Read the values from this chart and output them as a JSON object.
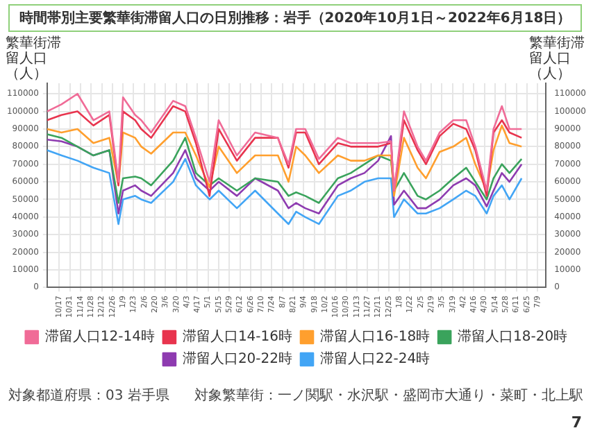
{
  "chart_data": {
    "type": "line",
    "title": "時間帯別主要繁華街滞留人口の日別推移：岩手（2020年10月1日～2022年6月18日）",
    "ylabel": "繁華街滞留人口（人）",
    "y2label": "繁華街滞留人口（人）",
    "x": [
      "2020-10-01",
      "2020-10-20",
      "2020-11-10",
      "2020-12-01",
      "2020-12-22",
      "2021-01-03",
      "2021-01-09",
      "2021-01-25",
      "2021-02-02",
      "2021-02-15",
      "2021-03-16",
      "2021-04-01",
      "2021-04-15",
      "2021-05-03",
      "2021-05-15",
      "2021-06-08",
      "2021-07-02",
      "2021-08-01",
      "2021-08-15",
      "2021-08-25",
      "2021-09-06",
      "2021-09-24",
      "2021-10-19",
      "2021-11-05",
      "2021-11-23",
      "2021-12-11",
      "2021-12-28",
      "2022-01-01",
      "2022-01-14",
      "2022-02-01",
      "2022-02-12",
      "2022-03-02",
      "2022-03-20",
      "2022-04-06",
      "2022-04-18",
      "2022-05-03",
      "2022-05-12",
      "2022-05-23",
      "2022-06-02",
      "2022-06-18"
    ],
    "series": [
      {
        "name": "滞留人口12-14時",
        "color": "#f06b97",
        "values": [
          100000,
          104000,
          110000,
          95000,
          100000,
          60000,
          108000,
          98000,
          95000,
          88000,
          106000,
          103000,
          85000,
          60000,
          95000,
          75000,
          88000,
          85000,
          70000,
          90000,
          90000,
          73000,
          85000,
          82000,
          82000,
          82000,
          83000,
          55000,
          100000,
          80000,
          72000,
          88000,
          95000,
          95000,
          80000,
          55000,
          90000,
          103000,
          90000,
          90000
        ]
      },
      {
        "name": "滞留人口14-16時",
        "color": "#e8344e",
        "values": [
          95000,
          98000,
          100000,
          92000,
          98000,
          58000,
          100000,
          95000,
          90000,
          85000,
          103000,
          100000,
          82000,
          52000,
          90000,
          72000,
          85000,
          85000,
          68000,
          88000,
          88000,
          70000,
          82000,
          80000,
          80000,
          80000,
          82000,
          55000,
          95000,
          78000,
          70000,
          86000,
          93000,
          90000,
          78000,
          52000,
          88000,
          95000,
          88000,
          85000
        ]
      },
      {
        "name": "滞留人口16-18時",
        "color": "#ff9f2e",
        "values": [
          90000,
          88000,
          90000,
          82000,
          85000,
          58000,
          88000,
          85000,
          80000,
          76000,
          88000,
          88000,
          75000,
          57000,
          80000,
          65000,
          75000,
          75000,
          60000,
          80000,
          75000,
          65000,
          75000,
          72000,
          72000,
          75000,
          75000,
          52000,
          85000,
          68000,
          62000,
          77000,
          80000,
          85000,
          70000,
          55000,
          78000,
          92000,
          82000,
          80000
        ]
      },
      {
        "name": "滞留人口18-20時",
        "color": "#3aa35c",
        "values": [
          87000,
          85000,
          80000,
          75000,
          78000,
          48000,
          62000,
          63000,
          62000,
          58000,
          72000,
          85000,
          65000,
          58000,
          62000,
          55000,
          62000,
          60000,
          52000,
          54000,
          52000,
          48000,
          62000,
          65000,
          70000,
          75000,
          72000,
          55000,
          65000,
          52000,
          50000,
          55000,
          62000,
          68000,
          60000,
          50000,
          62000,
          70000,
          65000,
          73000
        ]
      },
      {
        "name": "滞留人口20-22時",
        "color": "#8e3bb0",
        "values": [
          84000,
          83000,
          80000,
          75000,
          78000,
          42000,
          55000,
          58000,
          55000,
          52000,
          65000,
          78000,
          62000,
          55000,
          60000,
          52000,
          62000,
          55000,
          45000,
          48000,
          45000,
          42000,
          58000,
          62000,
          65000,
          72000,
          86000,
          47000,
          55000,
          45000,
          45000,
          50000,
          58000,
          62000,
          58000,
          46000,
          55000,
          65000,
          60000,
          70000
        ]
      },
      {
        "name": "滞留人口22-24時",
        "color": "#42a5f5",
        "values": [
          78000,
          75000,
          72000,
          68000,
          65000,
          36000,
          50000,
          52000,
          50000,
          48000,
          60000,
          73000,
          58000,
          50000,
          55000,
          45000,
          55000,
          42000,
          36000,
          43000,
          40000,
          36000,
          52000,
          55000,
          60000,
          62000,
          62000,
          40000,
          50000,
          42000,
          42000,
          45000,
          50000,
          55000,
          52000,
          42000,
          52000,
          58000,
          50000,
          62000
        ]
      }
    ],
    "xlim": [
      "2020-10-01",
      "2022-07-20"
    ],
    "xticks": [
      {
        "value": "2020-10-17",
        "label": "10/17"
      },
      {
        "value": "2020-10-31",
        "label": "10/31"
      },
      {
        "value": "2020-11-14",
        "label": "11/14"
      },
      {
        "value": "2020-11-28",
        "label": "11/28"
      },
      {
        "value": "2020-12-12",
        "label": "12/12"
      },
      {
        "value": "2020-12-26",
        "label": "12/26"
      },
      {
        "value": "2021-01-09",
        "label": "1/9"
      },
      {
        "value": "2021-01-23",
        "label": "1/23"
      },
      {
        "value": "2021-02-06",
        "label": "2/6"
      },
      {
        "value": "2021-02-20",
        "label": "2/20"
      },
      {
        "value": "2021-03-06",
        "label": "3/6"
      },
      {
        "value": "2021-03-20",
        "label": "3/20"
      },
      {
        "value": "2021-04-03",
        "label": "4/3"
      },
      {
        "value": "2021-04-17",
        "label": "4/17"
      },
      {
        "value": "2021-05-01",
        "label": "5/1"
      },
      {
        "value": "2021-05-15",
        "label": "5/15"
      },
      {
        "value": "2021-05-29",
        "label": "5/29"
      },
      {
        "value": "2021-06-12",
        "label": "6/12"
      },
      {
        "value": "2021-06-26",
        "label": "6/26"
      },
      {
        "value": "2021-07-10",
        "label": "7/10"
      },
      {
        "value": "2021-07-24",
        "label": "7/24"
      },
      {
        "value": "2021-08-07",
        "label": "8/7"
      },
      {
        "value": "2021-08-21",
        "label": "8/21"
      },
      {
        "value": "2021-09-04",
        "label": "9/4"
      },
      {
        "value": "2021-09-18",
        "label": "9/18"
      },
      {
        "value": "2021-10-02",
        "label": "10/2"
      },
      {
        "value": "2021-10-16",
        "label": "10/16"
      },
      {
        "value": "2021-10-30",
        "label": "10/30"
      },
      {
        "value": "2021-11-13",
        "label": "11/13"
      },
      {
        "value": "2021-11-27",
        "label": "11/27"
      },
      {
        "value": "2021-12-11",
        "label": "12/11"
      },
      {
        "value": "2021-12-25",
        "label": "12/25"
      },
      {
        "value": "2022-01-08",
        "label": "1/8"
      },
      {
        "value": "2022-01-22",
        "label": "1/22"
      },
      {
        "value": "2022-02-05",
        "label": "2/5"
      },
      {
        "value": "2022-02-19",
        "label": "2/19"
      },
      {
        "value": "2022-03-05",
        "label": "3/5"
      },
      {
        "value": "2022-03-19",
        "label": "3/19"
      },
      {
        "value": "2022-04-02",
        "label": "4/2"
      },
      {
        "value": "2022-04-16",
        "label": "4/16"
      },
      {
        "value": "2022-04-30",
        "label": "4/30"
      },
      {
        "value": "2022-05-14",
        "label": "5/14"
      },
      {
        "value": "2022-05-28",
        "label": "5/28"
      },
      {
        "value": "2022-06-11",
        "label": "6/11"
      },
      {
        "value": "2022-06-25",
        "label": "6/25"
      },
      {
        "value": "2022-07-09",
        "label": "7/9"
      }
    ],
    "ylim": [
      0,
      116000
    ],
    "yticks": [
      0,
      10000,
      20000,
      30000,
      40000,
      50000,
      60000,
      70000,
      80000,
      90000,
      100000,
      110000
    ],
    "y2lim": [
      0,
      116000
    ],
    "y2ticks": [
      0,
      10000,
      20000,
      30000,
      40000,
      50000,
      60000,
      70000,
      80000,
      90000,
      100000,
      110000
    ],
    "grid": true,
    "legend": "bottom",
    "marker": "none",
    "line_style": "solid",
    "annotations": [
      "対象都道府県：03 岩手県",
      "対象繁華街：一ノ関駅・水沢駅・盛岡市大通り・菜町・北上駅",
      "7"
    ]
  }
}
